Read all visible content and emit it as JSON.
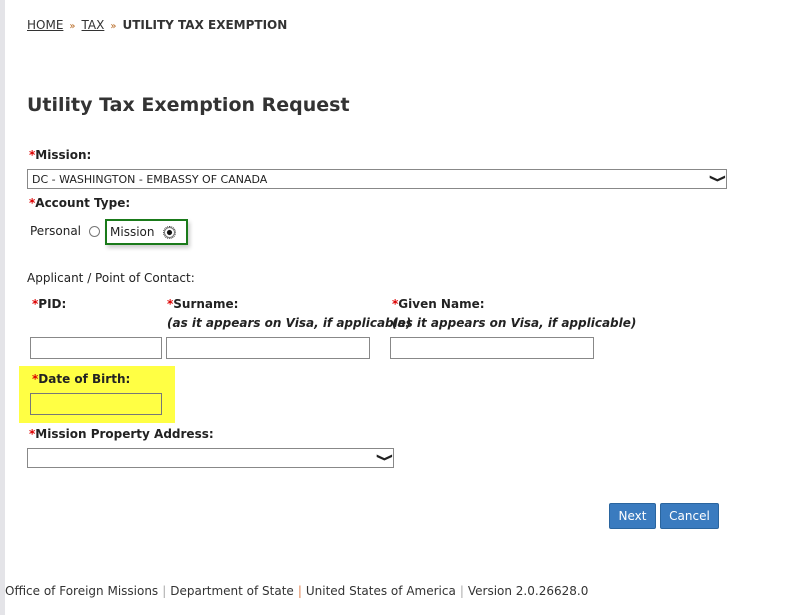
{
  "breadcrumb": {
    "home": "HOME",
    "tax": "TAX",
    "current": "UTILITY TAX EXEMPTION",
    "separator": "»"
  },
  "title": "Utility Tax Exemption Request",
  "required_marker": "*",
  "mission": {
    "label": "Mission:",
    "value": "DC - WASHINGTON - EMBASSY OF CANADA"
  },
  "account_type": {
    "label": "Account Type:",
    "options": [
      {
        "label": "Personal",
        "selected": false
      },
      {
        "label": "Mission",
        "selected": true
      }
    ]
  },
  "applicant": {
    "heading": "Applicant / Point of Contact:",
    "pid_label": "PID:",
    "surname_label": "Surname:",
    "given_label": "Given Name:",
    "visa_note": "(as it appears on Visa, if applicable)",
    "pid": "",
    "surname": "",
    "given": ""
  },
  "dob": {
    "label": "Date of Birth:",
    "value": "",
    "highlight": "#ffff44"
  },
  "property": {
    "label": "Mission Property Address:",
    "value": ""
  },
  "buttons": {
    "next": "Next",
    "cancel": "Cancel"
  },
  "footer": {
    "items": [
      "Office of Foreign Missions",
      "Department of State",
      "United States of America",
      "Version 2.0.26628.0"
    ],
    "separator": "|"
  }
}
